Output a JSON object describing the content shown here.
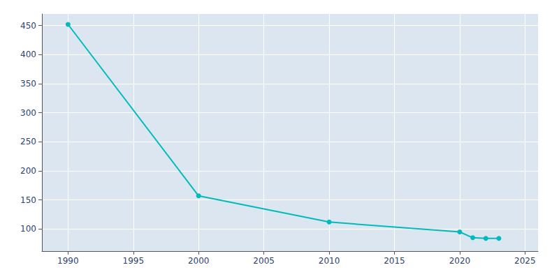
{
  "chart_data": {
    "type": "line",
    "x": [
      1990,
      2000,
      2010,
      2020,
      2021,
      2022,
      2023
    ],
    "values": [
      452,
      157,
      112,
      95,
      85,
      84,
      84
    ],
    "color": "#00BBBB",
    "marker": "circle",
    "xlim": [
      1988,
      2026
    ],
    "ylim": [
      62,
      470
    ],
    "xticks": [
      1990,
      1995,
      2000,
      2005,
      2010,
      2015,
      2020,
      2025
    ],
    "yticks": [
      100,
      150,
      200,
      250,
      300,
      350,
      400,
      450
    ],
    "grid": true
  }
}
